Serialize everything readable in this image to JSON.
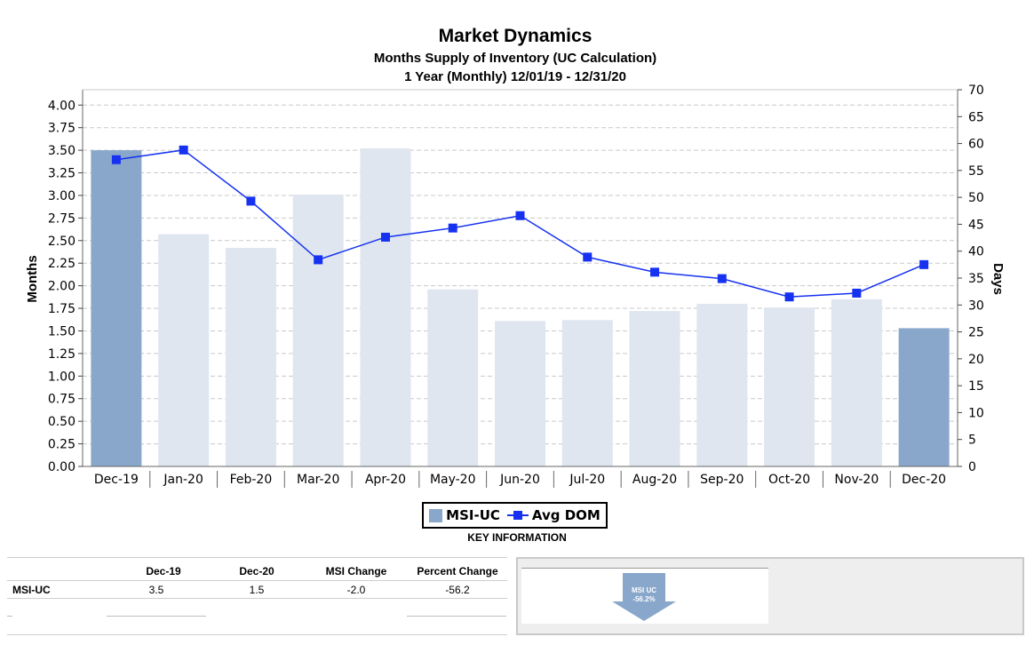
{
  "chart_data": {
    "type": "bar+line",
    "title": "Market Dynamics",
    "subtitle_line1": "Months Supply of Inventory (UC Calculation)",
    "subtitle_line2": "1 Year (Monthly) 12/01/19 - 12/31/20",
    "categories": [
      "Dec-19",
      "Jan-20",
      "Feb-20",
      "Mar-20",
      "Apr-20",
      "May-20",
      "Jun-20",
      "Jul-20",
      "Aug-20",
      "Sep-20",
      "Oct-20",
      "Nov-20",
      "Dec-20"
    ],
    "series": [
      {
        "name": "MSI-UC",
        "type": "bar",
        "axis": "left",
        "values": [
          3.5,
          2.57,
          2.42,
          3.01,
          3.52,
          1.96,
          1.61,
          1.62,
          1.72,
          1.8,
          1.76,
          1.85,
          1.53
        ],
        "highlight": [
          true,
          false,
          false,
          false,
          false,
          false,
          false,
          false,
          false,
          false,
          false,
          false,
          true
        ]
      },
      {
        "name": "Avg DOM",
        "type": "line",
        "axis": "right",
        "values": [
          57,
          58.8,
          49.3,
          38.4,
          42.6,
          44.3,
          46.6,
          38.9,
          36.1,
          34.9,
          31.5,
          32.2,
          37.5
        ]
      }
    ],
    "ylabel": "Months",
    "y2label": "Days",
    "ylim": [
      0,
      4.17
    ],
    "y2lim": [
      0,
      70
    ],
    "yticks": [
      "0.00",
      "0.25",
      "0.50",
      "0.75",
      "1.00",
      "1.25",
      "1.50",
      "1.75",
      "2.00",
      "2.25",
      "2.50",
      "2.75",
      "3.00",
      "3.25",
      "3.50",
      "3.75",
      "4.00"
    ],
    "y2ticks": [
      "0",
      "5",
      "10",
      "15",
      "20",
      "25",
      "30",
      "35",
      "40",
      "45",
      "50",
      "55",
      "60",
      "65",
      "70"
    ],
    "grid": true,
    "legend_position": "bottom-center",
    "colors": {
      "bar_highlight": "#88a7cb",
      "bar_normal": "#dfe6ef",
      "line": "#1632f0"
    }
  },
  "legend": {
    "bar_label": "MSI-UC",
    "line_label": "Avg DOM"
  },
  "key_information": "KEY INFORMATION",
  "table": {
    "headers": [
      "Dec-19",
      "Dec-20",
      "MSI Change",
      "Percent Change"
    ],
    "row_label": "MSI-UC",
    "values": [
      "3.5",
      "1.5",
      "-2.0",
      "-56.2"
    ]
  },
  "indicator": {
    "line1": "MSI UC",
    "line2": "-56.2%",
    "color": "#88a7cb"
  }
}
